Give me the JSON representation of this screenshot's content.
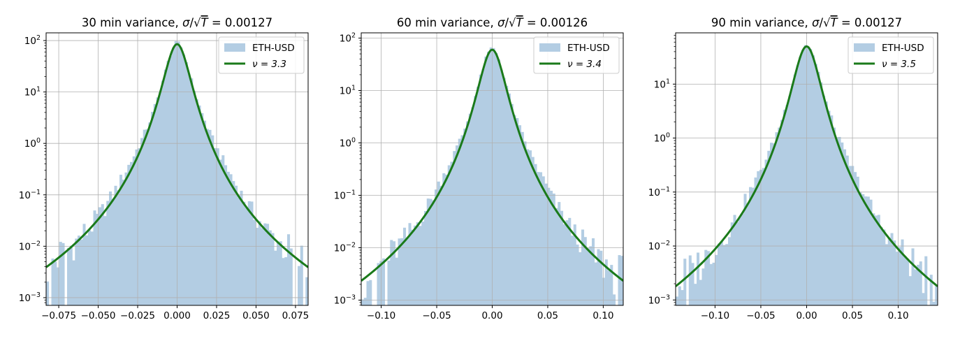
{
  "chart_data": [
    {
      "type": "histogram",
      "title": "30 min variance, σ/√T = 0.00127",
      "title_parts": {
        "prefix": "30 min variance, ",
        "sigma": "σ",
        "sqrt": "√",
        "T": "T",
        "value": " = 0.00127"
      },
      "xlim": [
        -0.083,
        0.083
      ],
      "ylim_log10": [
        -3.15,
        2.15
      ],
      "yscale": "log",
      "grid": true,
      "legend_position": "top-right",
      "xticks": [
        "−0.075",
        "−0.050",
        "−0.025",
        "0.000",
        "0.025",
        "0.050",
        "0.075"
      ],
      "xtick_values": [
        -0.075,
        -0.05,
        -0.025,
        0,
        0.025,
        0.05,
        0.075
      ],
      "yticks": [
        {
          "base": "10",
          "exp": "−3",
          "value": -3
        },
        {
          "base": "10",
          "exp": "−2",
          "value": -2
        },
        {
          "base": "10",
          "exp": "−1",
          "value": -1
        },
        {
          "base": "10",
          "exp": "0",
          "value": 0
        },
        {
          "base": "10",
          "exp": "1",
          "value": 1
        },
        {
          "base": "10",
          "exp": "2",
          "value": 2
        }
      ],
      "histogram": {
        "name": "ETH-USD",
        "color": "#b3cde3",
        "bin_count": 100,
        "range": [
          -0.083,
          0.083
        ],
        "peak_density": 88
      },
      "fit": {
        "name": "ν = 3.3",
        "nu": 3.3,
        "color": "#1a7a1a",
        "peak_density": 85,
        "scale": 0.0045
      }
    },
    {
      "type": "histogram",
      "title": "60 min variance, σ/√T = 0.00126",
      "title_parts": {
        "prefix": "60 min variance, ",
        "sigma": "σ",
        "sqrt": "√",
        "T": "T",
        "value": " = 0.00126"
      },
      "xlim": [
        -0.118,
        0.118
      ],
      "ylim_log10": [
        -3.1,
        2.1
      ],
      "yscale": "log",
      "grid": true,
      "legend_position": "top-right",
      "xticks": [
        "−0.10",
        "−0.05",
        "0.00",
        "0.05",
        "0.10"
      ],
      "xtick_values": [
        -0.1,
        -0.05,
        0,
        0.05,
        0.1
      ],
      "yticks": [
        {
          "base": "10",
          "exp": "−3",
          "value": -3
        },
        {
          "base": "10",
          "exp": "−2",
          "value": -2
        },
        {
          "base": "10",
          "exp": "−1",
          "value": -1
        },
        {
          "base": "10",
          "exp": "0",
          "value": 0
        },
        {
          "base": "10",
          "exp": "1",
          "value": 1
        },
        {
          "base": "10",
          "exp": "2",
          "value": 2
        }
      ],
      "histogram": {
        "name": "ETH-USD",
        "color": "#b3cde3",
        "bin_count": 100,
        "range": [
          -0.118,
          0.118
        ],
        "peak_density": 63
      },
      "fit": {
        "name": "ν = 3.4",
        "nu": 3.4,
        "color": "#1a7a1a",
        "peak_density": 60,
        "scale": 0.0064
      }
    },
    {
      "type": "histogram",
      "title": "90 min variance, σ/√T = 0.00127",
      "title_parts": {
        "prefix": "90 min variance, ",
        "sigma": "σ",
        "sqrt": "√",
        "T": "T",
        "value": " = 0.00127"
      },
      "xlim": [
        -0.143,
        0.143
      ],
      "ylim_log10": [
        -3.1,
        1.95
      ],
      "yscale": "log",
      "grid": true,
      "legend_position": "top-right",
      "xticks": [
        "−0.10",
        "−0.05",
        "0.00",
        "0.05",
        "0.10"
      ],
      "xtick_values": [
        -0.1,
        -0.05,
        0,
        0.05,
        0.1
      ],
      "yticks": [
        {
          "base": "10",
          "exp": "−3",
          "value": -3
        },
        {
          "base": "10",
          "exp": "−2",
          "value": -2
        },
        {
          "base": "10",
          "exp": "−1",
          "value": -1
        },
        {
          "base": "10",
          "exp": "0",
          "value": 0
        },
        {
          "base": "10",
          "exp": "1",
          "value": 1
        }
      ],
      "histogram": {
        "name": "ETH-USD",
        "color": "#b3cde3",
        "bin_count": 100,
        "range": [
          -0.143,
          0.143
        ],
        "peak_density": 52
      },
      "fit": {
        "name": "ν = 3.5",
        "nu": 3.5,
        "color": "#1a7a1a",
        "peak_density": 50,
        "scale": 0.0079
      }
    }
  ]
}
